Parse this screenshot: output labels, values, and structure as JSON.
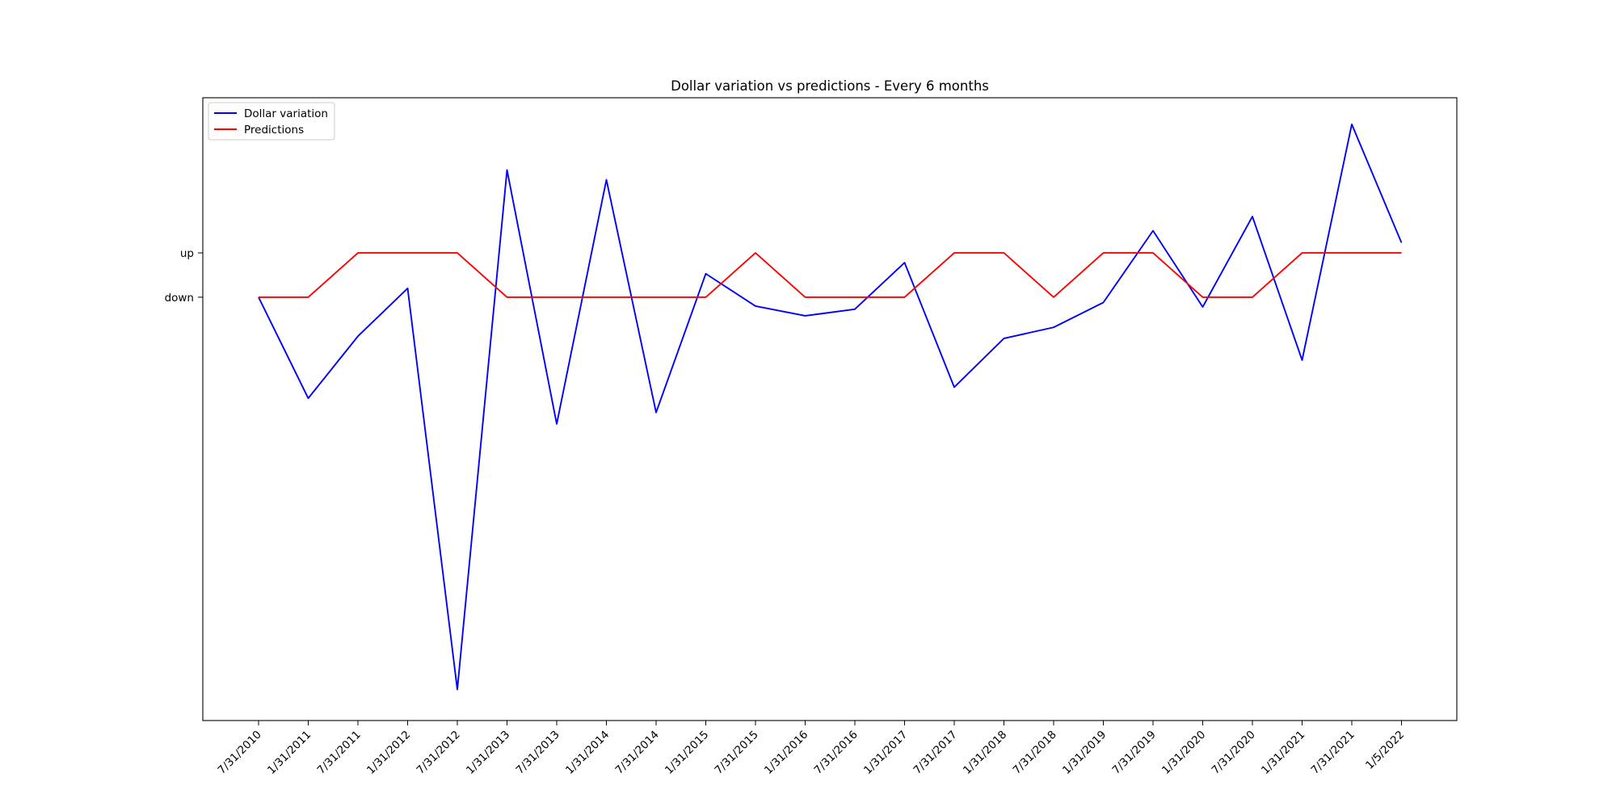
{
  "chart_data": {
    "type": "line",
    "title": "Dollar variation vs predictions - Every 6 months",
    "xlabel": "",
    "ylabel": "",
    "categories": [
      "7/31/2010",
      "1/31/2011",
      "7/31/2011",
      "1/31/2012",
      "7/31/2012",
      "1/31/2013",
      "7/31/2013",
      "1/31/2014",
      "7/31/2014",
      "1/31/2015",
      "7/31/2015",
      "1/31/2016",
      "7/31/2016",
      "1/31/2017",
      "7/31/2017",
      "1/31/2018",
      "7/31/2018",
      "1/31/2019",
      "7/31/2019",
      "1/31/2020",
      "7/31/2020",
      "1/31/2021",
      "7/31/2021",
      "1/5/2022"
    ],
    "y_ticks": [
      {
        "label": "down",
        "value": 0
      },
      {
        "label": "up",
        "value": 1
      }
    ],
    "ylim": [
      -9.55,
      4.5
    ],
    "grid": false,
    "legend_position": "top-left",
    "series": [
      {
        "name": "Dollar variation",
        "color": "#0000ff",
        "values": [
          0,
          -2.28,
          -0.88,
          0.2,
          -8.85,
          2.87,
          -2.86,
          2.65,
          -2.6,
          0.53,
          -0.2,
          -0.42,
          -0.27,
          0.78,
          -2.03,
          -0.93,
          -0.68,
          -0.12,
          1.5,
          -0.22,
          1.82,
          -1.42,
          3.9,
          1.23
        ]
      },
      {
        "name": "Predictions",
        "color": "#ff0000",
        "values": [
          0,
          0,
          1,
          1,
          1,
          0,
          0,
          0,
          0,
          0,
          1,
          0,
          0,
          0,
          1,
          1,
          0,
          1,
          1,
          0,
          0,
          1,
          1,
          1
        ]
      }
    ]
  }
}
